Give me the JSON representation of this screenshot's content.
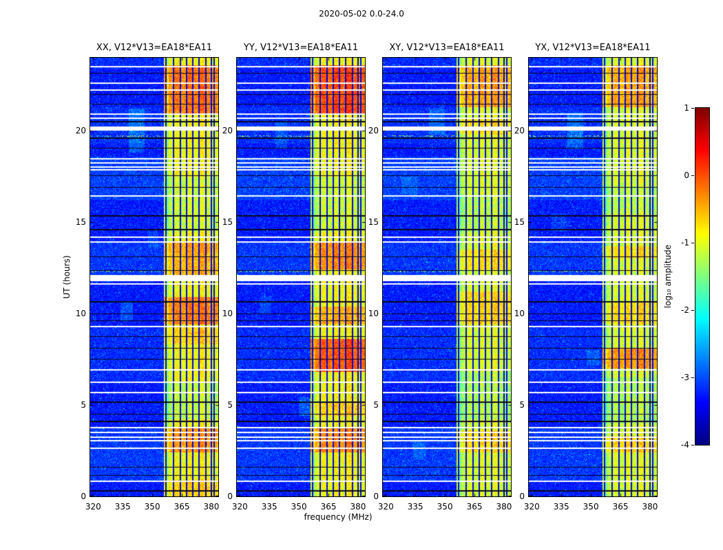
{
  "figure": {
    "title": "2020-05-02 0.0-24.0"
  },
  "chart_data": {
    "type": "heatmap",
    "title": "2020-05-02 0.0-24.0",
    "xlabel": "frequency (MHz)",
    "ylabel": "UT (hours)",
    "x_range_mhz": [
      318.5,
      383.5
    ],
    "y_range_hours": [
      0,
      24
    ],
    "x_ticks": [
      320,
      335,
      350,
      365,
      380
    ],
    "y_ticks": [
      0,
      5,
      10,
      15,
      20
    ],
    "colormap": "jet",
    "value_range": [
      -4,
      1
    ],
    "colorbar": {
      "label": "log₁₀ amplitude",
      "ticks": [
        1,
        0,
        -1,
        -2,
        -3,
        -4
      ]
    },
    "noise_floor": -3.55,
    "rfi_band_mhz": [
      356.0,
      383.5
    ],
    "rfi_dark_lines_mhz": [
      356.9,
      360.9,
      364.2,
      367.3,
      370.6,
      373.8,
      377.1,
      379.9,
      381.4
    ],
    "rfi_bright_columns": [
      [
        356.3,
        0.4,
        0.3
      ],
      [
        359.3,
        1.1,
        0.3
      ],
      [
        362.5,
        1.4,
        0.45
      ],
      [
        365.8,
        1.2,
        0.35
      ],
      [
        369.0,
        1.6,
        0.5
      ],
      [
        372.2,
        1.3,
        0.4
      ],
      [
        375.5,
        1.7,
        0.55
      ],
      [
        378.5,
        1.1,
        0.4
      ],
      [
        380.6,
        0.6,
        0.3
      ],
      [
        382.4,
        1.0,
        0.35
      ]
    ],
    "gap_rows_ut": [
      [
        23.51,
        0.04
      ],
      [
        22.61,
        0.04
      ],
      [
        22.23,
        0.04
      ],
      [
        20.92,
        0.04
      ],
      [
        20.69,
        0.04
      ],
      [
        20.12,
        0.1
      ],
      [
        18.47,
        0.04
      ],
      [
        18.25,
        0.04
      ],
      [
        18.02,
        0.04
      ],
      [
        17.87,
        0.04
      ],
      [
        16.44,
        0.04
      ],
      [
        14.18,
        0.04
      ],
      [
        13.92,
        0.04
      ],
      [
        11.95,
        0.16
      ],
      [
        11.62,
        0.05
      ],
      [
        9.29,
        0.04
      ],
      [
        6.92,
        0.04
      ],
      [
        6.25,
        0.04
      ],
      [
        5.68,
        0.04
      ],
      [
        3.76,
        0.04
      ],
      [
        3.5,
        0.04
      ],
      [
        3.24,
        0.04
      ],
      [
        3.05,
        0.04
      ],
      [
        2.63,
        0.04
      ],
      [
        0.83,
        0.04
      ]
    ],
    "dark_rows_ut": [
      [
        23.15,
        0.025
      ],
      [
        22.0,
        0.025
      ],
      [
        21.45,
        0.025
      ],
      [
        20.5,
        0.025
      ],
      [
        19.6,
        0.025
      ],
      [
        19.05,
        0.025
      ],
      [
        17.55,
        0.025
      ],
      [
        16.9,
        0.025
      ],
      [
        15.35,
        0.025
      ],
      [
        14.6,
        0.025
      ],
      [
        13.1,
        0.025
      ],
      [
        12.35,
        0.025
      ],
      [
        10.65,
        0.025
      ],
      [
        10.0,
        0.025
      ],
      [
        9.6,
        0.025
      ],
      [
        8.75,
        0.025
      ],
      [
        8.1,
        0.025
      ],
      [
        7.5,
        0.025
      ],
      [
        5.15,
        0.025
      ],
      [
        4.5,
        0.025
      ],
      [
        4.1,
        0.025
      ],
      [
        1.6,
        0.025
      ],
      [
        1.15,
        0.025
      ],
      [
        0.3,
        0.025
      ]
    ],
    "bright_noise_intervals": [
      [
        23.4,
        24.0,
        0.1
      ],
      [
        19.3,
        21.3,
        0.12
      ],
      [
        16.2,
        18.6,
        0.2
      ],
      [
        11.9,
        13.9,
        0.15
      ],
      [
        6.3,
        9.2,
        0.1
      ],
      [
        0.8,
        3.8,
        0.16
      ]
    ],
    "speckle_rows_ut": [
      19.7,
      12.3
    ],
    "panels": [
      {
        "id": "XX",
        "title": "XX, V12*V13=EA18*EA11",
        "band_base": -1.35,
        "boosts": [
          [
            20.9,
            23.6,
            0.7
          ],
          [
            13.3,
            13.9,
            0.5
          ],
          [
            11.9,
            13.3,
            0.4
          ],
          [
            9.4,
            10.9,
            0.65
          ],
          [
            8.3,
            9.3,
            0.25
          ],
          [
            2.4,
            3.8,
            0.55
          ],
          [
            0.0,
            0.9,
            0.25
          ],
          [
            4.2,
            6.2,
            -0.25
          ],
          [
            14.5,
            17.5,
            -0.2
          ]
        ],
        "streaks": [
          [
            338,
            346,
            18.8,
            21.2,
            0.45
          ],
          [
            334,
            340,
            9.6,
            10.6,
            0.4
          ],
          [
            348,
            353,
            13.6,
            14.5,
            0.3
          ]
        ]
      },
      {
        "id": "YY",
        "title": "YY, V12*V13=EA18*EA11",
        "band_base": -1.35,
        "boosts": [
          [
            20.9,
            23.6,
            0.9
          ],
          [
            12.4,
            13.9,
            0.6
          ],
          [
            6.8,
            8.6,
            0.85
          ],
          [
            9.4,
            10.4,
            0.4
          ],
          [
            2.4,
            3.8,
            0.6
          ],
          [
            4.4,
            5.2,
            0.25
          ],
          [
            14.5,
            17.5,
            -0.2
          ]
        ],
        "streaks": [
          [
            350,
            356,
            4.4,
            5.4,
            0.45
          ],
          [
            338,
            344,
            19.0,
            20.5,
            0.3
          ],
          [
            330,
            336,
            10.0,
            11.0,
            0.3
          ]
        ]
      },
      {
        "id": "XY",
        "title": "XY, V12*V13=EA18*EA11",
        "band_base": -1.5,
        "boosts": [
          [
            21.3,
            23.6,
            0.6
          ],
          [
            19.8,
            20.7,
            0.3
          ],
          [
            9.4,
            11.2,
            0.35
          ],
          [
            12.4,
            13.5,
            0.3
          ],
          [
            2.4,
            3.6,
            0.35
          ],
          [
            4.2,
            6.8,
            -0.2
          ],
          [
            14.5,
            16.5,
            -0.15
          ]
        ],
        "streaks": [
          [
            342,
            350,
            19.8,
            21.2,
            0.4
          ],
          [
            334,
            340,
            2.0,
            3.0,
            0.3
          ],
          [
            328,
            336,
            16.5,
            17.5,
            0.25
          ]
        ]
      },
      {
        "id": "YX",
        "title": "YX, V12*V13=EA18*EA11",
        "band_base": -1.5,
        "boosts": [
          [
            21.3,
            23.6,
            0.6
          ],
          [
            7.0,
            8.1,
            0.7
          ],
          [
            9.4,
            10.6,
            0.3
          ],
          [
            2.4,
            3.3,
            0.4
          ],
          [
            13.0,
            13.7,
            0.3
          ],
          [
            4.0,
            6.5,
            -0.2
          ],
          [
            15.5,
            17.0,
            -0.15
          ]
        ],
        "streaks": [
          [
            338,
            346,
            19.0,
            21.0,
            0.45
          ],
          [
            348,
            354,
            7.2,
            8.0,
            0.35
          ],
          [
            330,
            338,
            14.5,
            15.5,
            0.25
          ]
        ]
      }
    ]
  }
}
